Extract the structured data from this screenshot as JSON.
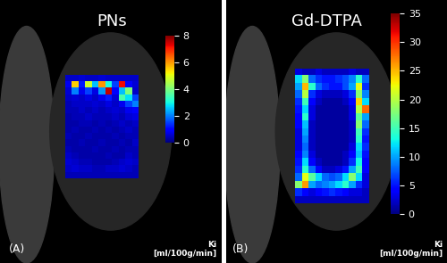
{
  "chart_data": [
    {
      "type": "heatmap",
      "title": "PNs",
      "panel_label": "(A)",
      "colorbar_label": "Ki\n[ml/100g/min]",
      "colorbar_range": [
        0,
        8
      ],
      "colorbar_ticks": [
        0,
        2,
        4,
        6,
        8
      ],
      "tick_labels": false,
      "cells": [
        [
          0.5,
          0.5,
          0.6,
          0.5,
          0.5,
          0.6,
          0.5,
          0.5,
          0.5,
          0.5,
          0.5
        ],
        [
          0.8,
          5.5,
          1.2,
          4.8,
          2.5,
          6.0,
          3.0,
          1.5,
          7.2,
          1.0,
          0.6
        ],
        [
          0.6,
          2.0,
          0.8,
          1.5,
          0.7,
          2.2,
          7.5,
          1.0,
          2.5,
          4.0,
          0.5
        ],
        [
          0.5,
          0.6,
          0.5,
          0.7,
          0.5,
          0.8,
          1.2,
          0.6,
          3.5,
          2.8,
          1.5
        ],
        [
          0.4,
          0.5,
          0.5,
          0.5,
          0.6,
          0.5,
          0.7,
          0.5,
          0.8,
          1.5,
          2.0
        ],
        [
          0.4,
          0.4,
          0.5,
          0.4,
          0.5,
          0.4,
          0.5,
          0.6,
          0.5,
          0.8,
          1.0
        ],
        [
          0.3,
          0.4,
          0.4,
          0.5,
          0.4,
          0.4,
          0.4,
          0.5,
          0.4,
          0.6,
          0.7
        ],
        [
          0.3,
          0.3,
          0.4,
          0.4,
          0.3,
          0.4,
          0.3,
          0.4,
          0.5,
          0.4,
          0.5
        ],
        [
          0.3,
          0.4,
          0.3,
          0.3,
          0.4,
          0.3,
          0.4,
          0.3,
          0.4,
          0.5,
          0.4
        ],
        [
          0.4,
          0.3,
          0.3,
          0.4,
          0.3,
          0.3,
          0.3,
          0.4,
          0.3,
          0.4,
          0.4
        ],
        [
          0.3,
          0.3,
          0.4,
          0.3,
          0.3,
          0.4,
          0.3,
          0.3,
          0.4,
          0.3,
          0.5
        ],
        [
          0.4,
          0.3,
          0.3,
          0.3,
          0.4,
          0.3,
          0.3,
          0.4,
          0.3,
          0.4,
          0.4
        ],
        [
          0.5,
          0.4,
          0.3,
          0.3,
          0.3,
          0.3,
          0.4,
          0.3,
          0.3,
          0.5,
          0.4
        ],
        [
          0.6,
          0.5,
          0.4,
          0.4,
          0.3,
          0.3,
          0.3,
          0.4,
          0.5,
          0.6,
          0.5
        ],
        [
          0.5,
          0.6,
          0.5,
          0.5,
          0.4,
          0.4,
          0.5,
          0.5,
          0.6,
          0.5,
          0.4
        ],
        [
          0.4,
          0.4,
          0.4,
          0.4,
          0.4,
          0.4,
          0.4,
          0.4,
          0.4,
          0.4,
          0.4
        ]
      ]
    },
    {
      "type": "heatmap",
      "title": "Gd-DTPA",
      "panel_label": "(B)",
      "colorbar_label": "Ki\n[ml/100g/min]",
      "colorbar_range": [
        0,
        35
      ],
      "colorbar_ticks": [
        0,
        5,
        10,
        15,
        20,
        25,
        30,
        35
      ],
      "tick_labels": false,
      "cells": [
        [
          3,
          2,
          2,
          3,
          2,
          2,
          2,
          2,
          3,
          2,
          2
        ],
        [
          12,
          18,
          8,
          6,
          5,
          5,
          6,
          7,
          9,
          14,
          8
        ],
        [
          10,
          25,
          14,
          8,
          6,
          5,
          5,
          7,
          10,
          22,
          6
        ],
        [
          8,
          20,
          6,
          3,
          2,
          2,
          2,
          3,
          6,
          18,
          9
        ],
        [
          6,
          15,
          4,
          2,
          1,
          1,
          1,
          2,
          4,
          24,
          12
        ],
        [
          5,
          12,
          3,
          1,
          1,
          1,
          1,
          1,
          3,
          20,
          28
        ],
        [
          4,
          14,
          3,
          1,
          1,
          1,
          1,
          1,
          3,
          16,
          10
        ],
        [
          4,
          11,
          2,
          1,
          1,
          1,
          1,
          1,
          2,
          18,
          8
        ],
        [
          3,
          10,
          2,
          1,
          1,
          1,
          1,
          1,
          2,
          15,
          6
        ],
        [
          3,
          9,
          2,
          1,
          1,
          1,
          1,
          1,
          2,
          14,
          5
        ],
        [
          3,
          8,
          2,
          1,
          1,
          1,
          1,
          1,
          3,
          12,
          6
        ],
        [
          4,
          9,
          3,
          1,
          1,
          1,
          1,
          2,
          4,
          11,
          5
        ],
        [
          5,
          12,
          4,
          2,
          1,
          1,
          1,
          2,
          6,
          13,
          4
        ],
        [
          6,
          14,
          8,
          4,
          2,
          2,
          3,
          5,
          10,
          15,
          4
        ],
        [
          8,
          22,
          16,
          12,
          8,
          7,
          8,
          12,
          18,
          12,
          3
        ],
        [
          18,
          26,
          10,
          8,
          9,
          10,
          12,
          14,
          10,
          6,
          3
        ],
        [
          6,
          4,
          3,
          4,
          5,
          6,
          5,
          4,
          3,
          3,
          2
        ],
        [
          2,
          2,
          2,
          2,
          2,
          2,
          2,
          2,
          2,
          2,
          2
        ]
      ]
    }
  ]
}
